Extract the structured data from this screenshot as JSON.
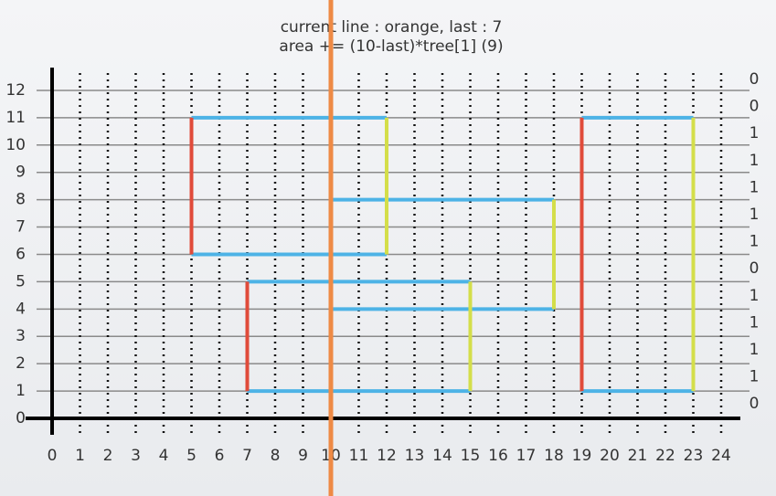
{
  "header": {
    "line1": "current line : orange, last : 7",
    "line2": "area += (10-last)*tree[1] (9)"
  },
  "x_ticks": [
    0,
    1,
    2,
    3,
    4,
    5,
    6,
    7,
    8,
    9,
    10,
    11,
    12,
    13,
    14,
    15,
    16,
    17,
    18,
    19,
    20,
    21,
    22,
    23,
    24
  ],
  "y_ticks": [
    0,
    1,
    2,
    3,
    4,
    5,
    6,
    7,
    8,
    9,
    10,
    11,
    12
  ],
  "tree_counts": [
    0,
    0,
    1,
    1,
    1,
    1,
    1,
    0,
    1,
    1,
    1,
    1,
    0
  ],
  "rectangles": [
    {
      "x1": 5,
      "x2": 12,
      "y1": 6,
      "y2": 11
    },
    {
      "x1": 7,
      "x2": 15,
      "y1": 1,
      "y2": 5
    },
    {
      "x1": 10,
      "x2": 18,
      "y1": 4,
      "y2": 8
    },
    {
      "x1": 19,
      "x2": 23,
      "y1": 1,
      "y2": 11
    }
  ],
  "sweep_x": 10
}
